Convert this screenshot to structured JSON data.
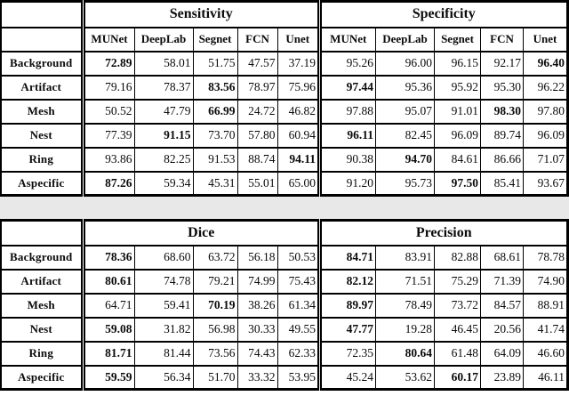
{
  "colors": {
    "page_background": "#ffffff",
    "scan_gap": "#e8e8e8",
    "rule": "#000000",
    "text": "#0b0b0b"
  },
  "models": [
    "MUNet",
    "DeepLab",
    "Segnet",
    "FCN",
    "Unet"
  ],
  "row_labels": [
    "Background",
    "Artifact",
    "Mesh",
    "Nest",
    "Ring",
    "Aspecific"
  ],
  "bands": [
    {
      "model_header": true,
      "left": {
        "title": "Sensitivity",
        "rows": [
          {
            "values": [
              "72.89",
              "58.01",
              "51.75",
              "47.57",
              "37.19"
            ],
            "bold": 0
          },
          {
            "values": [
              "79.16",
              "78.37",
              "83.56",
              "78.97",
              "75.96"
            ],
            "bold": 2
          },
          {
            "values": [
              "50.52",
              "47.79",
              "66.99",
              "24.72",
              "46.82"
            ],
            "bold": 2
          },
          {
            "values": [
              "77.39",
              "91.15",
              "73.70",
              "57.80",
              "60.94"
            ],
            "bold": 1
          },
          {
            "values": [
              "93.86",
              "82.25",
              "91.53",
              "88.74",
              "94.11"
            ],
            "bold": 4
          },
          {
            "values": [
              "87.26",
              "59.34",
              "45.31",
              "55.01",
              "65.00"
            ],
            "bold": 0
          }
        ]
      },
      "right": {
        "title": "Specificity",
        "rows": [
          {
            "values": [
              "95.26",
              "96.00",
              "96.15",
              "92.17",
              "96.40"
            ],
            "bold": 4
          },
          {
            "values": [
              "97.44",
              "95.36",
              "95.92",
              "95.30",
              "96.22"
            ],
            "bold": 0
          },
          {
            "values": [
              "97.88",
              "95.07",
              "91.01",
              "98.30",
              "97.80"
            ],
            "bold": 3
          },
          {
            "values": [
              "96.11",
              "82.45",
              "96.09",
              "89.74",
              "96.09"
            ],
            "bold": 0
          },
          {
            "values": [
              "90.38",
              "94.70",
              "84.61",
              "86.66",
              "71.07"
            ],
            "bold": 1
          },
          {
            "values": [
              "91.20",
              "95.73",
              "97.50",
              "85.41",
              "93.67"
            ],
            "bold": 2
          }
        ]
      }
    },
    {
      "model_header": false,
      "left": {
        "title": "Dice",
        "rows": [
          {
            "values": [
              "78.36",
              "68.60",
              "63.72",
              "56.18",
              "50.53"
            ],
            "bold": 0
          },
          {
            "values": [
              "80.61",
              "74.78",
              "79.21",
              "74.99",
              "75.43"
            ],
            "bold": 0
          },
          {
            "values": [
              "64.71",
              "59.41",
              "70.19",
              "38.26",
              "61.34"
            ],
            "bold": 2
          },
          {
            "values": [
              "59.08",
              "31.82",
              "56.98",
              "30.33",
              "49.55"
            ],
            "bold": 0
          },
          {
            "values": [
              "81.71",
              "81.44",
              "73.56",
              "74.43",
              "62.33"
            ],
            "bold": 0
          },
          {
            "values": [
              "59.59",
              "56.34",
              "51.70",
              "33.32",
              "53.95"
            ],
            "bold": 0
          }
        ]
      },
      "right": {
        "title": "Precision",
        "rows": [
          {
            "values": [
              "84.71",
              "83.91",
              "82.88",
              "68.61",
              "78.78"
            ],
            "bold": 0
          },
          {
            "values": [
              "82.12",
              "71.51",
              "75.29",
              "71.39",
              "74.90"
            ],
            "bold": 0
          },
          {
            "values": [
              "89.97",
              "78.49",
              "73.72",
              "84.57",
              "88.91"
            ],
            "bold": 0
          },
          {
            "values": [
              "47.77",
              "19.28",
              "46.45",
              "20.56",
              "41.74"
            ],
            "bold": 0
          },
          {
            "values": [
              "72.35",
              "80.64",
              "61.48",
              "64.09",
              "46.60"
            ],
            "bold": 1
          },
          {
            "values": [
              "45.24",
              "53.62",
              "60.17",
              "23.89",
              "46.11"
            ],
            "bold": 2
          }
        ]
      }
    }
  ]
}
